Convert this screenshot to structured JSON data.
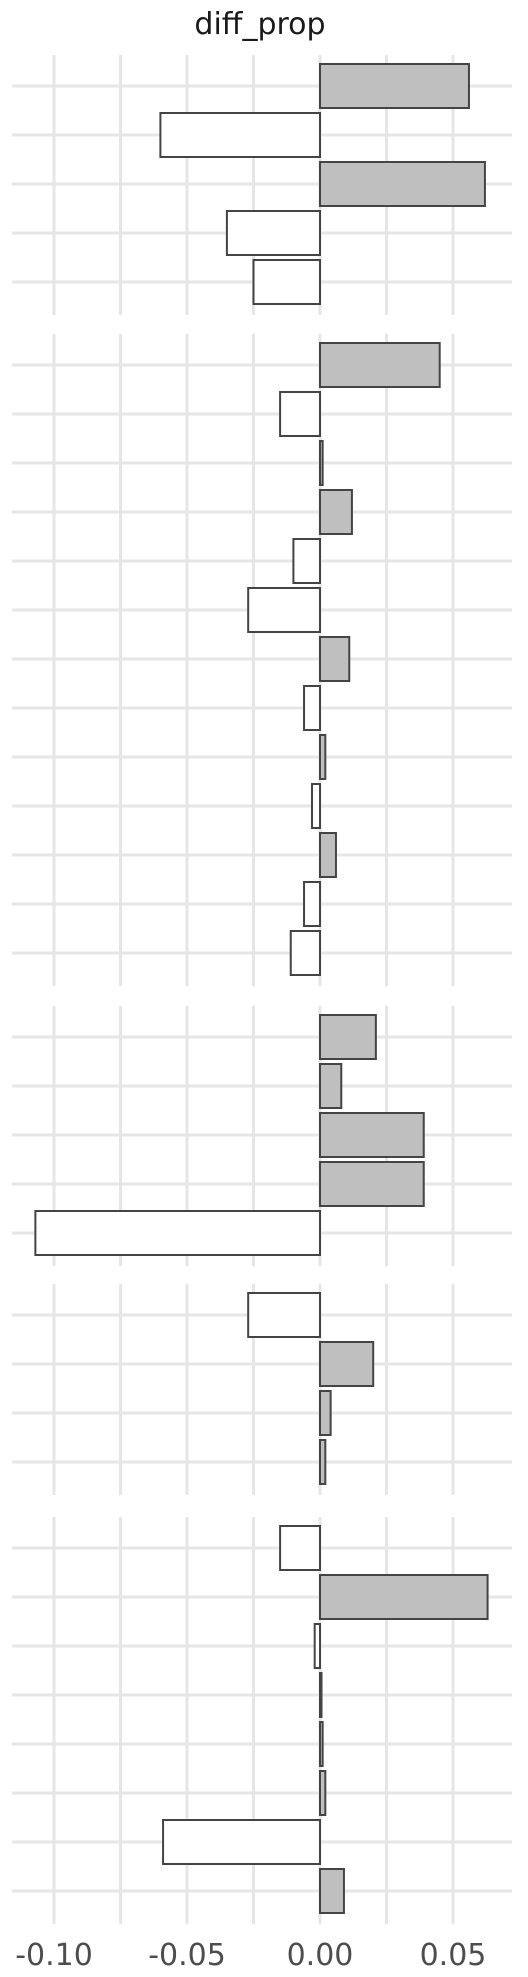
{
  "chart_data": {
    "type": "bar",
    "orientation": "horizontal",
    "title": "diff_prop",
    "xlabel": "",
    "ylabel": "",
    "xlim": [
      -0.1125,
      0.07
    ],
    "x_ticks": [
      -0.1,
      -0.05,
      0.0,
      0.05
    ],
    "x_tick_labels": [
      "-0.10",
      "-0.05",
      "0.00",
      "0.05"
    ],
    "grid": true,
    "colors": {
      "positive": "#bfbfbf",
      "negative": "#ffffff",
      "outline": "#444444",
      "grid": "#e6e6e6"
    },
    "panels": [
      {
        "values": [
          0.056,
          -0.06,
          0.062,
          -0.035,
          -0.025
        ]
      },
      {
        "values": [
          0.045,
          -0.015,
          0.001,
          0.012,
          -0.01,
          -0.027,
          0.011,
          -0.006,
          0.002,
          -0.003,
          0.006,
          -0.006,
          -0.011
        ]
      },
      {
        "values": [
          0.021,
          0.008,
          0.039,
          0.039,
          -0.107
        ]
      },
      {
        "values": [
          -0.027,
          0.02,
          0.004,
          0.002
        ]
      },
      {
        "values": [
          -0.015,
          0.063,
          -0.002,
          0.0005,
          0.001,
          0.002,
          -0.059,
          0.009
        ]
      }
    ]
  }
}
